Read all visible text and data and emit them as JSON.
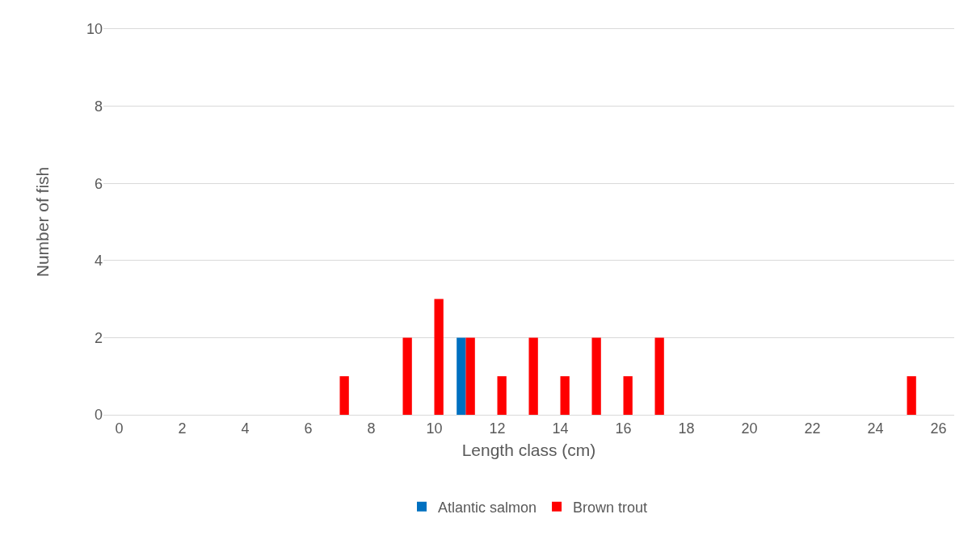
{
  "chart_data": {
    "type": "bar",
    "xlabel": "Length class (cm)",
    "ylabel": "Number of fish",
    "x": [
      7,
      9,
      10,
      11,
      12,
      13,
      14,
      15,
      16,
      17,
      25
    ],
    "series": [
      {
        "name": "Atlantic salmon",
        "color": "#0070c0",
        "values": [
          null,
          null,
          null,
          2,
          null,
          null,
          null,
          null,
          null,
          null,
          null
        ]
      },
      {
        "name": "Brown trout",
        "color": "#ff0000",
        "values": [
          1,
          2,
          3,
          2,
          1,
          2,
          1,
          2,
          1,
          2,
          1
        ]
      }
    ],
    "xlim": [
      -0.5,
      26.5
    ],
    "xticks": [
      0,
      2,
      4,
      6,
      8,
      10,
      12,
      14,
      16,
      18,
      20,
      22,
      24,
      26
    ],
    "ylim": [
      0,
      10
    ],
    "yticks": [
      0,
      2,
      4,
      6,
      8,
      10
    ],
    "grid": "y",
    "legend": "bottom"
  }
}
